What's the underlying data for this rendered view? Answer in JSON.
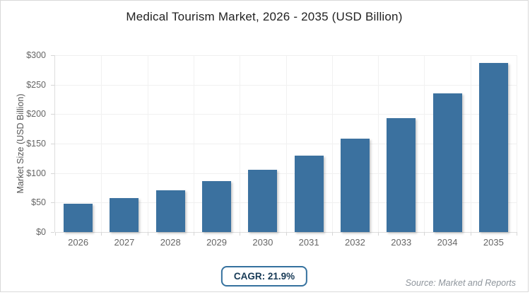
{
  "chart_data": {
    "type": "bar",
    "title": "Medical Tourism Market, 2026 - 2035 (USD Billion)",
    "categories": [
      "2026",
      "2027",
      "2028",
      "2029",
      "2030",
      "2031",
      "2032",
      "2033",
      "2034",
      "2035"
    ],
    "values": [
      48,
      58,
      71,
      87,
      106,
      130,
      158,
      193,
      235,
      287
    ],
    "xlabel": "",
    "ylabel": "Market Size (USD Billion)",
    "ylim": [
      0,
      300
    ],
    "ytick_step": 50,
    "ytick_labels": [
      "$0",
      "$50",
      "$100",
      "$150",
      "$200",
      "$250",
      "$300"
    ],
    "grid": true,
    "legend": "none",
    "bar_color": "#3b719f",
    "gridline_color": "#f0f0f0",
    "axis_line_color": "#dddddd",
    "tick_label_color": "#666666",
    "title_color": "#222222"
  },
  "footer": {
    "cagr_label": "CAGR: 21.9%",
    "cagr_border_color": "#35719e",
    "cagr_text_color": "#173a56",
    "source_label": "Source: Market and Reports",
    "source_color": "#8e959c"
  },
  "frame": {
    "border_color": "#d9d9d9",
    "background_color": "#ffffff"
  }
}
